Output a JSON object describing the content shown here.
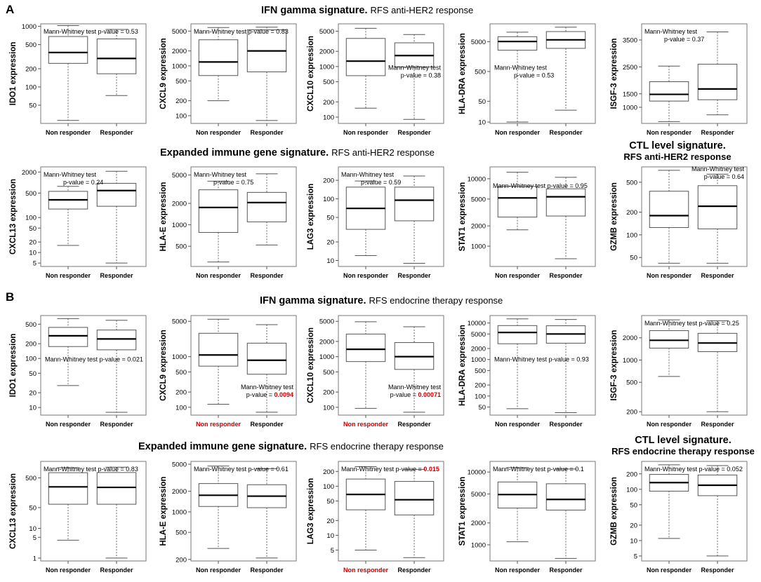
{
  "panels": [
    {
      "letter": "A",
      "rows": [
        {
          "title": "IFN gamma signature.",
          "subtitle": "RFS anti-HER2 response"
        },
        {
          "title": "Expanded immune gene signature.",
          "subtitle": "RFS anti-HER2 response",
          "ctl_title": "CTL level signature.",
          "ctl_subtitle": "RFS anti-HER2 response"
        }
      ]
    },
    {
      "letter": "B",
      "rows": [
        {
          "title": "IFN gamma signature.",
          "subtitle": "RFS endocrine therapy response"
        },
        {
          "title": "Expanded immune gene signature.",
          "subtitle": "RFS endocrine therapy response",
          "ctl_title": "CTL level signature.",
          "ctl_subtitle": "RFS endocrine therapy response"
        }
      ]
    }
  ],
  "group_labels": [
    "Non responder",
    "Responder"
  ],
  "colors": {
    "significant": "#cc0000",
    "box": "#555555",
    "median": "#000000"
  },
  "chart_data": [
    {
      "type": "box",
      "panel": "A",
      "gene": "IDO1",
      "ylabel": "IDO1 expression",
      "yscale": "log",
      "ylim": [
        25,
        1100
      ],
      "yticks": [
        50,
        100,
        200,
        500,
        1000
      ],
      "ann": [
        "Mann-Whitney test p-value = 0.53"
      ],
      "ann_pos": "top-left",
      "groups": [
        {
          "name": "Non responder",
          "min": 28,
          "q1": 245,
          "median": 370,
          "q3": 680,
          "max": 1030
        },
        {
          "name": "Responder",
          "min": 72,
          "q1": 165,
          "median": 295,
          "q3": 620,
          "max": 890
        }
      ]
    },
    {
      "type": "box",
      "panel": "A",
      "gene": "CXCL9",
      "ylabel": "CXCL9 expression",
      "yscale": "log",
      "ylim": [
        70,
        7000
      ],
      "yticks": [
        100,
        200,
        500,
        1000,
        2000,
        5000
      ],
      "ann": [
        "Mann-Whitney test p-value = 0.83"
      ],
      "ann_pos": "top-left",
      "groups": [
        {
          "name": "Non responder",
          "min": 200,
          "q1": 640,
          "median": 1200,
          "q3": 3350,
          "max": 5900
        },
        {
          "name": "Responder",
          "min": 80,
          "q1": 760,
          "median": 2000,
          "q3": 5300,
          "max": 6000
        }
      ]
    },
    {
      "type": "box",
      "panel": "A",
      "gene": "CXCL10",
      "ylabel": "CXCL10 expression",
      "yscale": "log",
      "ylim": [
        75,
        7000
      ],
      "yticks": [
        100,
        200,
        500,
        1000,
        2000,
        5000
      ],
      "ann": [
        "Mann-Whitney test",
        "p-value = 0.38"
      ],
      "ann_pos": "mid-right",
      "groups": [
        {
          "name": "Non responder",
          "min": 150,
          "q1": 660,
          "median": 1280,
          "q3": 3600,
          "max": 5700
        },
        {
          "name": "Responder",
          "min": 90,
          "q1": 980,
          "median": 1650,
          "q3": 2950,
          "max": 4300
        }
      ]
    },
    {
      "type": "box",
      "panel": "A",
      "gene": "HLA-DRA",
      "ylabel": "HLA-DRA expression",
      "yscale": "log",
      "ylim": [
        9,
        20000
      ],
      "yticks": [
        10,
        50,
        500,
        5000
      ],
      "ann": [
        "Mann-Whitney test",
        "p-value = 0.53"
      ],
      "ann_pos": "mid-left",
      "groups": [
        {
          "name": "Non responder",
          "min": 10,
          "q1": 2600,
          "median": 5100,
          "q3": 7400,
          "max": 10500
        },
        {
          "name": "Responder",
          "min": 25,
          "q1": 3000,
          "median": 5800,
          "q3": 11000,
          "max": 15500
        }
      ]
    },
    {
      "type": "box",
      "panel": "A",
      "gene": "ISGF-3",
      "ylabel": "ISGF-3 expression",
      "yscale": "linear",
      "ylim": [
        400,
        4100
      ],
      "yticks": [
        1000,
        1500,
        2500,
        3500
      ],
      "ann": [
        "Mann-Whitney test",
        "p-value = 0.37"
      ],
      "ann_pos": "top-left",
      "groups": [
        {
          "name": "Non responder",
          "min": 470,
          "q1": 1230,
          "median": 1480,
          "q3": 1950,
          "max": 2530
        },
        {
          "name": "Responder",
          "min": 720,
          "q1": 1280,
          "median": 1680,
          "q3": 2600,
          "max": 3800
        }
      ]
    },
    {
      "type": "box",
      "panel": "A",
      "gene": "CXCL13",
      "ylabel": "CXCL13 expression",
      "yscale": "log",
      "ylim": [
        4,
        2800
      ],
      "yticks": [
        5,
        10,
        20,
        50,
        100,
        500,
        2000
      ],
      "ann": [
        "Mann-Whitney test",
        "p-value = 0.24"
      ],
      "ann_pos": "top-left",
      "groups": [
        {
          "name": "Non responder",
          "min": 16,
          "q1": 175,
          "median": 320,
          "q3": 560,
          "max": 780
        },
        {
          "name": "Responder",
          "min": 5,
          "q1": 210,
          "median": 590,
          "q3": 950,
          "max": 2100
        }
      ]
    },
    {
      "type": "box",
      "panel": "A",
      "gene": "HLA-E",
      "ylabel": "HLA-E expression",
      "yscale": "log",
      "ylim": [
        260,
        6500
      ],
      "yticks": [
        500,
        1000,
        2000,
        5000
      ],
      "ann": [
        "Mann-Whitney test",
        "p-value = 0.75"
      ],
      "ann_pos": "top-left",
      "groups": [
        {
          "name": "Non responder",
          "min": 300,
          "q1": 780,
          "median": 1750,
          "q3": 3100,
          "max": 4100
        },
        {
          "name": "Responder",
          "min": 520,
          "q1": 1100,
          "median": 2050,
          "q3": 2850,
          "max": 5200
        }
      ]
    },
    {
      "type": "box",
      "panel": "A",
      "gene": "LAG3",
      "ylabel": "LAG3 expression",
      "yscale": "log",
      "ylim": [
        8,
        330
      ],
      "yticks": [
        10,
        20,
        50,
        100,
        200
      ],
      "ann": [
        "Mann-Whitney test",
        "p-value = 0.59"
      ],
      "ann_pos": "top-left",
      "groups": [
        {
          "name": "Non responder",
          "min": 12,
          "q1": 32,
          "median": 70,
          "q3": 155,
          "max": 195
        },
        {
          "name": "Responder",
          "min": 9,
          "q1": 44,
          "median": 95,
          "q3": 155,
          "max": 235
        }
      ]
    },
    {
      "type": "box",
      "panel": "A",
      "gene": "STAT1",
      "ylabel": "STAT1 expression",
      "yscale": "log",
      "ylim": [
        500,
        15000
      ],
      "yticks": [
        1000,
        2000,
        5000,
        10000
      ],
      "ann": [
        "Mann-Whitney test p-value = 0.95"
      ],
      "ann_pos": "upper-left",
      "groups": [
        {
          "name": "Non responder",
          "min": 1750,
          "q1": 2700,
          "median": 5200,
          "q3": 7700,
          "max": 12500
        },
        {
          "name": "Responder",
          "min": 650,
          "q1": 2800,
          "median": 5400,
          "q3": 7100,
          "max": 10500
        }
      ]
    },
    {
      "type": "box",
      "panel": "A",
      "gene": "GZMB",
      "ylabel": "GZMB expression",
      "yscale": "log",
      "ylim": [
        38,
        800
      ],
      "yticks": [
        50,
        100,
        200,
        500
      ],
      "ann": [
        "Mann-Whitney test",
        "p-value = 0.64"
      ],
      "ann_pos": "top-right",
      "groups": [
        {
          "name": "Non responder",
          "min": 42,
          "q1": 125,
          "median": 180,
          "q3": 380,
          "max": 720
        },
        {
          "name": "Responder",
          "min": 42,
          "q1": 120,
          "median": 240,
          "q3": 450,
          "max": 640
        }
      ]
    },
    {
      "type": "box",
      "panel": "B",
      "gene": "IDO1",
      "ylabel": "IDO1 expression",
      "yscale": "log",
      "ylim": [
        7,
        750
      ],
      "yticks": [
        10,
        20,
        50,
        100,
        200,
        500
      ],
      "ann": [
        "Mann-Whitney test p-value = 0.021"
      ],
      "ann_pos": "mid-left",
      "groups": [
        {
          "name": "Non responder",
          "min": 28,
          "q1": 175,
          "median": 290,
          "q3": 430,
          "max": 650
        },
        {
          "name": "Responder",
          "min": 8,
          "q1": 150,
          "median": 250,
          "q3": 380,
          "max": 600
        }
      ]
    },
    {
      "type": "box",
      "panel": "B",
      "gene": "CXCL9",
      "ylabel": "CXCL9 expression",
      "yscale": "log",
      "ylim": [
        70,
        6500
      ],
      "yticks": [
        100,
        200,
        500,
        1000,
        5000
      ],
      "ann": [
        "Mann-Whitney test",
        "p-value = ",
        "0.0094"
      ],
      "ann_pos": "bottom-right",
      "significant": true,
      "sig_group": "Non responder",
      "groups": [
        {
          "name": "Non responder",
          "min": 115,
          "q1": 650,
          "median": 1080,
          "q3": 2900,
          "max": 5500
        },
        {
          "name": "Responder",
          "min": 80,
          "q1": 450,
          "median": 850,
          "q3": 1850,
          "max": 4300
        }
      ]
    },
    {
      "type": "box",
      "panel": "B",
      "gene": "CXCL10",
      "ylabel": "CXCL10 expression",
      "yscale": "log",
      "ylim": [
        70,
        6500
      ],
      "yticks": [
        100,
        200,
        500,
        1000,
        2000,
        5000
      ],
      "ann": [
        "Mann-Whitney test",
        "p-value = ",
        "0.00071"
      ],
      "ann_pos": "bottom-right",
      "significant": true,
      "sig_group": "Non responder",
      "groups": [
        {
          "name": "Non responder",
          "min": 95,
          "q1": 800,
          "median": 1400,
          "q3": 2800,
          "max": 4900
        },
        {
          "name": "Responder",
          "min": 80,
          "q1": 560,
          "median": 1000,
          "q3": 1900,
          "max": 3900
        }
      ]
    },
    {
      "type": "box",
      "panel": "B",
      "gene": "HLA-DRA",
      "ylabel": "HLA-DRA expression",
      "yscale": "log",
      "ylim": [
        30,
        16000
      ],
      "yticks": [
        50,
        100,
        200,
        500,
        1000,
        2000,
        5000,
        10000
      ],
      "ann": [
        "Mann-Whitney test p-value = 0.93"
      ],
      "ann_pos": "mid-left",
      "groups": [
        {
          "name": "Non responder",
          "min": 45,
          "q1": 2700,
          "median": 5500,
          "q3": 8500,
          "max": 13000
        },
        {
          "name": "Responder",
          "min": 35,
          "q1": 2800,
          "median": 5000,
          "q3": 8400,
          "max": 12500
        }
      ]
    },
    {
      "type": "box",
      "panel": "B",
      "gene": "ISGF-3",
      "ylabel": "ISGF-3 expression",
      "yscale": "log",
      "ylim": [
        180,
        4000
      ],
      "yticks": [
        200,
        500,
        1000,
        2000
      ],
      "ann": [
        "Mann-Whitney test p-value = 0.25"
      ],
      "ann_pos": "top-left",
      "groups": [
        {
          "name": "Non responder",
          "min": 600,
          "q1": 1450,
          "median": 1850,
          "q3": 2500,
          "max": 3500
        },
        {
          "name": "Responder",
          "min": 200,
          "q1": 1300,
          "median": 1700,
          "q3": 2300,
          "max": 3400
        }
      ]
    },
    {
      "type": "box",
      "panel": "B",
      "gene": "CXCL13",
      "ylabel": "CXCL13 expression",
      "yscale": "log",
      "ylim": [
        0.8,
        1800
      ],
      "yticks": [
        1,
        5,
        10,
        50,
        500
      ],
      "ann": [
        "Mann-Whitney test p-value = 0.83"
      ],
      "ann_pos": "top-left",
      "groups": [
        {
          "name": "Non responder",
          "min": 4,
          "q1": 65,
          "median": 250,
          "q3": 750,
          "max": 1100
        },
        {
          "name": "Responder",
          "min": 1,
          "q1": 65,
          "median": 240,
          "q3": 760,
          "max": 1150
        }
      ]
    },
    {
      "type": "box",
      "panel": "B",
      "gene": "HLA-E",
      "ylabel": "HLA-E expression",
      "yscale": "log",
      "ylim": [
        190,
        5500
      ],
      "yticks": [
        200,
        500,
        1000,
        2000,
        5000
      ],
      "ann": [
        "Mann-Whitney test p-value = 0.61"
      ],
      "ann_pos": "top-left",
      "groups": [
        {
          "name": "Non responder",
          "min": 290,
          "q1": 1200,
          "median": 1750,
          "q3": 2600,
          "max": 4700
        },
        {
          "name": "Responder",
          "min": 210,
          "q1": 1150,
          "median": 1700,
          "q3": 2500,
          "max": 4300
        }
      ]
    },
    {
      "type": "box",
      "panel": "B",
      "gene": "LAG3",
      "ylabel": "LAG3 expression",
      "yscale": "log",
      "ylim": [
        3,
        320
      ],
      "yticks": [
        5,
        10,
        20,
        50,
        100,
        200
      ],
      "ann": [
        "Mann-Whitney test p-value = ",
        "0.015"
      ],
      "ann_pos": "top-left",
      "significant": true,
      "sig_group": "Non responder",
      "groups": [
        {
          "name": "Non responder",
          "min": 5,
          "q1": 33,
          "median": 68,
          "q3": 140,
          "max": 250
        },
        {
          "name": "Responder",
          "min": 3.5,
          "q1": 26,
          "median": 53,
          "q3": 125,
          "max": 220
        }
      ]
    },
    {
      "type": "box",
      "panel": "B",
      "gene": "STAT1",
      "ylabel": "STAT1 expression",
      "yscale": "log",
      "ylim": [
        600,
        14000
      ],
      "yticks": [
        1000,
        2000,
        5000,
        10000
      ],
      "ann": [
        "Mann-Whitney test p-value = 0.1"
      ],
      "ann_pos": "top-left",
      "groups": [
        {
          "name": "Non responder",
          "min": 1100,
          "q1": 3200,
          "median": 4900,
          "q3": 7300,
          "max": 11500
        },
        {
          "name": "Responder",
          "min": 650,
          "q1": 3000,
          "median": 4200,
          "q3": 6900,
          "max": 11000
        }
      ]
    },
    {
      "type": "box",
      "panel": "B",
      "gene": "GZMB",
      "ylabel": "GZMB expression",
      "yscale": "log",
      "ylim": [
        4,
        350
      ],
      "yticks": [
        5,
        10,
        20,
        50,
        100,
        200
      ],
      "ann": [
        "Mann-Whitney test p-value = 0.052"
      ],
      "ann_pos": "top-left",
      "groups": [
        {
          "name": "Non responder",
          "min": 11,
          "q1": 92,
          "median": 135,
          "q3": 195,
          "max": 300
        },
        {
          "name": "Responder",
          "min": 5,
          "q1": 75,
          "median": 120,
          "q3": 190,
          "max": 290
        }
      ]
    }
  ]
}
